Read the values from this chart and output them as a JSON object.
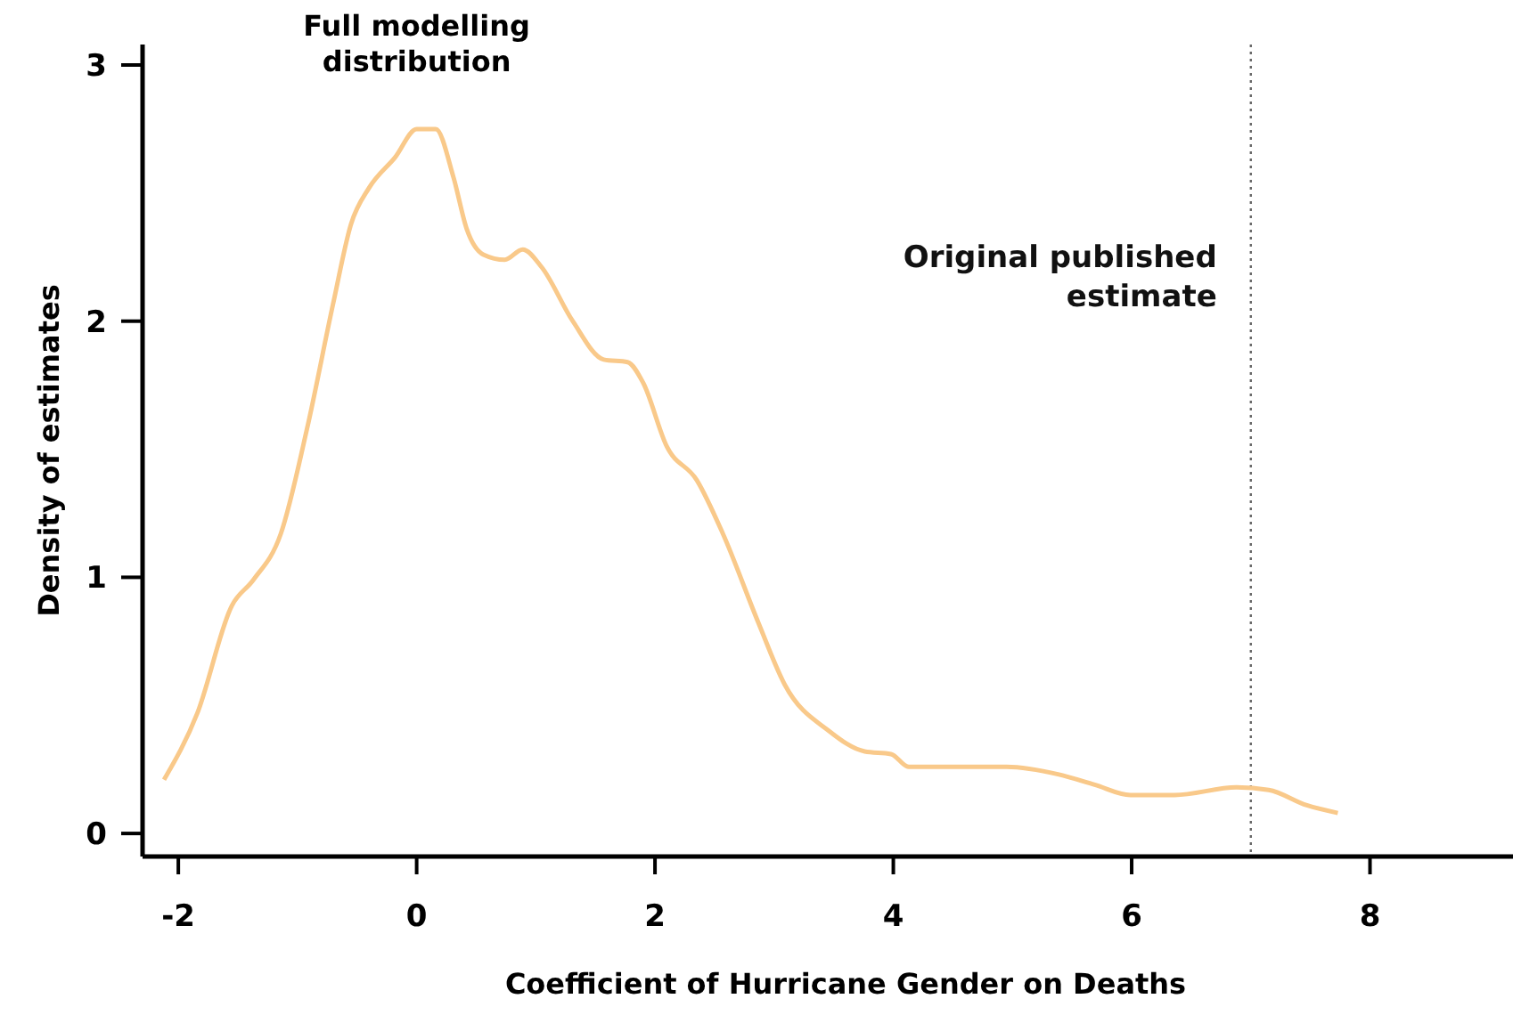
{
  "chart_data": {
    "type": "line",
    "xlabel": "Coefficient of Hurricane Gender on Deaths",
    "ylabel": "Density of estimates",
    "xlim": [
      -2.3,
      9.2
    ],
    "ylim": [
      -0.09,
      3.08
    ],
    "xticks": [
      -2,
      0,
      2,
      4,
      6,
      8
    ],
    "yticks": [
      0,
      1,
      2,
      3
    ],
    "annotations": [
      "Full modelling distribution"
    ],
    "ref_lines": [
      {
        "axis": "x",
        "value": 7,
        "label": "Original published estimate",
        "color": "#666666",
        "line_style": "dotted"
      }
    ],
    "series": [
      {
        "color": "#f9c98a",
        "x": [
          -2.12,
          -1.84,
          -1.55,
          -1.37,
          -1.14,
          -0.92,
          -0.7,
          -0.55,
          -0.4,
          -0.18,
          0,
          0.16,
          0.31,
          0.42,
          0.56,
          0.74,
          0.89,
          1.05,
          1.31,
          1.57,
          1.77,
          1.9,
          2.1,
          2.35,
          2.57,
          2.87,
          3.09,
          3.46,
          3.76,
          3.98,
          4.13,
          4.58,
          4.95,
          5.39,
          5.69,
          5.99,
          6.36,
          6.88,
          7.15,
          7.47,
          7.73
        ],
        "values": [
          0.21,
          0.47,
          0.89,
          0.99,
          1.17,
          1.58,
          2.07,
          2.38,
          2.52,
          2.64,
          2.75,
          2.75,
          2.56,
          2.36,
          2.26,
          2.24,
          2.28,
          2.21,
          2.0,
          1.85,
          1.84,
          1.76,
          1.51,
          1.38,
          1.17,
          0.82,
          0.58,
          0.4,
          0.32,
          0.31,
          0.26,
          0.26,
          0.26,
          0.23,
          0.19,
          0.15,
          0.15,
          0.18,
          0.17,
          0.11,
          0.08
        ]
      }
    ]
  }
}
